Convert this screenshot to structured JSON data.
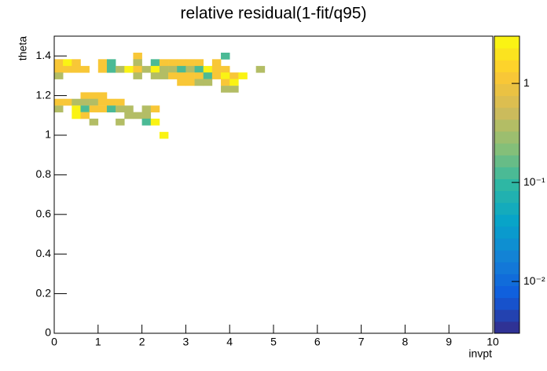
{
  "chart_data": {
    "type": "heatmap",
    "title": "relative residual(1-fit/q95)",
    "x_label": "invpt",
    "y_label": "theta",
    "xlim": [
      0,
      10
    ],
    "ylim": [
      0,
      1.5
    ],
    "zlim": [
      0.003,
      3
    ],
    "zlog": true,
    "xticks": [
      0,
      1,
      2,
      3,
      4,
      5,
      6,
      7,
      8,
      9,
      10
    ],
    "yticks": [
      0,
      0.2,
      0.4,
      0.6,
      0.8,
      1,
      1.2,
      1.4
    ],
    "zticks": [
      {
        "value": 0.01,
        "label": "10⁻²"
      },
      {
        "value": 0.1,
        "label": "10⁻¹"
      },
      1
    ],
    "x": [
      1.9,
      3.9,
      0.1,
      0.3,
      0.5,
      1.1,
      1.3,
      1.9,
      2.3,
      2.5,
      2.7,
      2.9,
      3.1,
      3.3,
      3.7,
      0.1,
      0.3,
      0.5,
      0.7,
      1.1,
      1.3,
      1.5,
      1.7,
      1.9,
      2.1,
      2.3,
      2.5,
      2.7,
      2.9,
      3.1,
      3.3,
      3.5,
      3.7,
      3.9,
      4.7,
      0.1,
      1.9,
      2.3,
      2.5,
      2.7,
      2.9,
      3.1,
      3.3,
      3.5,
      3.7,
      3.9,
      4.1,
      4.3,
      2.9,
      3.1,
      3.3,
      3.5,
      3.9,
      4.1,
      3.9,
      4.1,
      0.7,
      0.9,
      1.1,
      0.1,
      0.3,
      0.5,
      0.7,
      0.9,
      1.1,
      1.3,
      1.5,
      0.1,
      0.5,
      0.7,
      0.9,
      1.1,
      1.3,
      1.5,
      1.7,
      2.1,
      2.3,
      0.5,
      0.7,
      1.7,
      1.9,
      2.1,
      0.9,
      1.5,
      2.1,
      2.3,
      2.5
    ],
    "y": [
      1.4,
      1.4,
      1.367,
      1.367,
      1.367,
      1.367,
      1.367,
      1.367,
      1.367,
      1.367,
      1.367,
      1.367,
      1.367,
      1.367,
      1.367,
      1.333,
      1.333,
      1.333,
      1.333,
      1.333,
      1.333,
      1.333,
      1.333,
      1.333,
      1.333,
      1.333,
      1.333,
      1.333,
      1.333,
      1.333,
      1.333,
      1.333,
      1.333,
      1.333,
      1.333,
      1.3,
      1.3,
      1.3,
      1.3,
      1.3,
      1.3,
      1.3,
      1.3,
      1.3,
      1.3,
      1.3,
      1.3,
      1.3,
      1.267,
      1.267,
      1.267,
      1.267,
      1.267,
      1.267,
      1.233,
      1.233,
      1.2,
      1.2,
      1.2,
      1.167,
      1.167,
      1.167,
      1.167,
      1.167,
      1.167,
      1.167,
      1.167,
      1.133,
      1.133,
      1.133,
      1.133,
      1.133,
      1.133,
      1.133,
      1.133,
      1.133,
      1.133,
      1.1,
      1.1,
      1.1,
      1.1,
      1.1,
      1.067,
      1.067,
      1.067,
      1.067,
      1.0
    ],
    "values": [
      1.2,
      0.12,
      1.2,
      2.5,
      1.2,
      1.2,
      0.12,
      0.35,
      0.12,
      1.2,
      1.2,
      1.2,
      1.2,
      1.2,
      1.2,
      1.2,
      1.2,
      1.2,
      1.2,
      1.2,
      0.12,
      0.35,
      2.5,
      1.2,
      0.35,
      2.5,
      0.35,
      0.35,
      0.12,
      0.35,
      0.12,
      2.5,
      1.2,
      1.2,
      0.35,
      0.35,
      0.35,
      0.35,
      0.35,
      1.2,
      1.2,
      1.2,
      1.2,
      0.12,
      1.2,
      2.5,
      1.2,
      2.5,
      1.2,
      1.2,
      0.35,
      0.35,
      1.2,
      2.5,
      0.35,
      0.35,
      1.2,
      1.2,
      1.2,
      1.2,
      1.2,
      0.35,
      0.35,
      0.35,
      1.2,
      1.2,
      1.2,
      0.35,
      2.5,
      0.12,
      1.2,
      1.2,
      0.12,
      0.35,
      0.35,
      0.35,
      1.2,
      2.5,
      1.2,
      0.35,
      0.35,
      0.35,
      0.35,
      0.35,
      0.12,
      2.5,
      2.5
    ]
  }
}
